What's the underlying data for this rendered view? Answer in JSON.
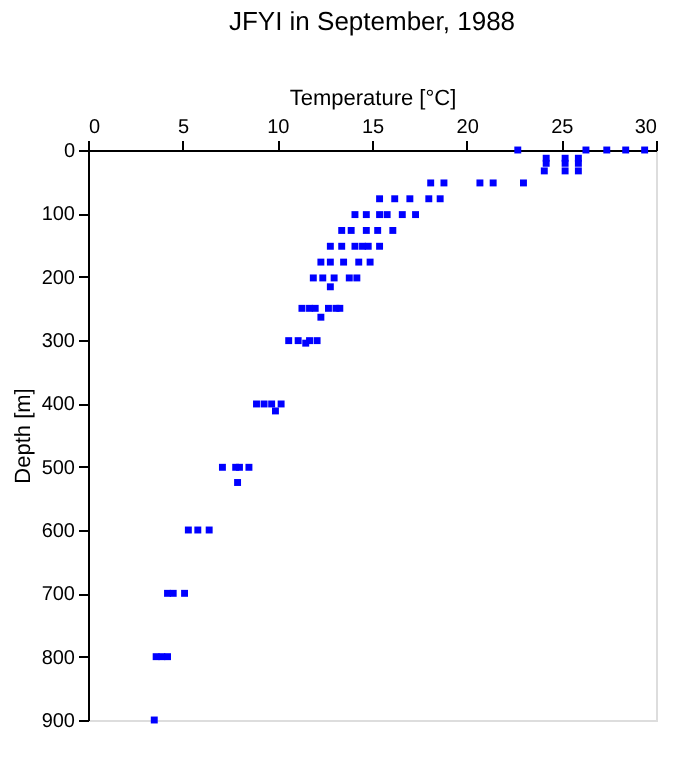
{
  "chart_data": {
    "type": "scatter",
    "title": "JFYI in September, 1988",
    "xlabel": "Temperature [°C]",
    "ylabel": "Depth [m]",
    "xlim": [
      0,
      30
    ],
    "xticks": [
      0,
      5,
      10,
      15,
      20,
      25,
      30
    ],
    "ylim": [
      900,
      0
    ],
    "yticks": [
      0,
      100,
      200,
      300,
      400,
      500,
      600,
      700,
      800,
      900
    ],
    "grid": false,
    "marker": "square",
    "series": [
      {
        "color": "#0000ff",
        "x": [
          22.7,
          26.3,
          27.4,
          28.4,
          29.4,
          24.2,
          25.2,
          25.9,
          24.2,
          25.2,
          25.9,
          24.1,
          25.2,
          25.9,
          18.1,
          18.8,
          20.7,
          21.4,
          23.0,
          15.4,
          16.2,
          17.0,
          18.0,
          18.6,
          14.1,
          14.7,
          15.4,
          15.8,
          16.6,
          17.3,
          13.4,
          13.9,
          14.7,
          15.3,
          16.1,
          12.8,
          13.4,
          14.1,
          14.5,
          14.8,
          15.4,
          12.3,
          12.8,
          13.5,
          14.3,
          14.9,
          11.9,
          12.4,
          13.0,
          13.8,
          14.2,
          12.8,
          11.3,
          11.7,
          12.0,
          12.7,
          13.1,
          13.3,
          12.3,
          10.6,
          11.1,
          11.7,
          12.1,
          11.5,
          8.9,
          9.3,
          9.7,
          10.2,
          9.9,
          7.1,
          7.8,
          8.0,
          8.5,
          7.9,
          5.3,
          5.8,
          6.4,
          4.2,
          4.5,
          5.1,
          3.6,
          3.9,
          4.2,
          3.5
        ],
        "values": [
          0,
          0,
          0,
          0,
          0,
          13,
          13,
          13,
          21,
          21,
          21,
          33,
          33,
          33,
          52,
          52,
          52,
          52,
          52,
          77,
          77,
          77,
          77,
          77,
          102,
          102,
          102,
          102,
          102,
          102,
          127,
          127,
          127,
          127,
          127,
          152,
          152,
          152,
          152,
          152,
          152,
          177,
          177,
          177,
          177,
          177,
          202,
          202,
          202,
          202,
          202,
          216,
          250,
          250,
          250,
          250,
          250,
          250,
          264,
          301,
          301,
          301,
          301,
          305,
          401,
          401,
          401,
          401,
          412,
          501,
          501,
          501,
          501,
          525,
          600,
          600,
          600,
          700,
          700,
          700,
          800,
          800,
          800,
          900
        ]
      }
    ]
  }
}
